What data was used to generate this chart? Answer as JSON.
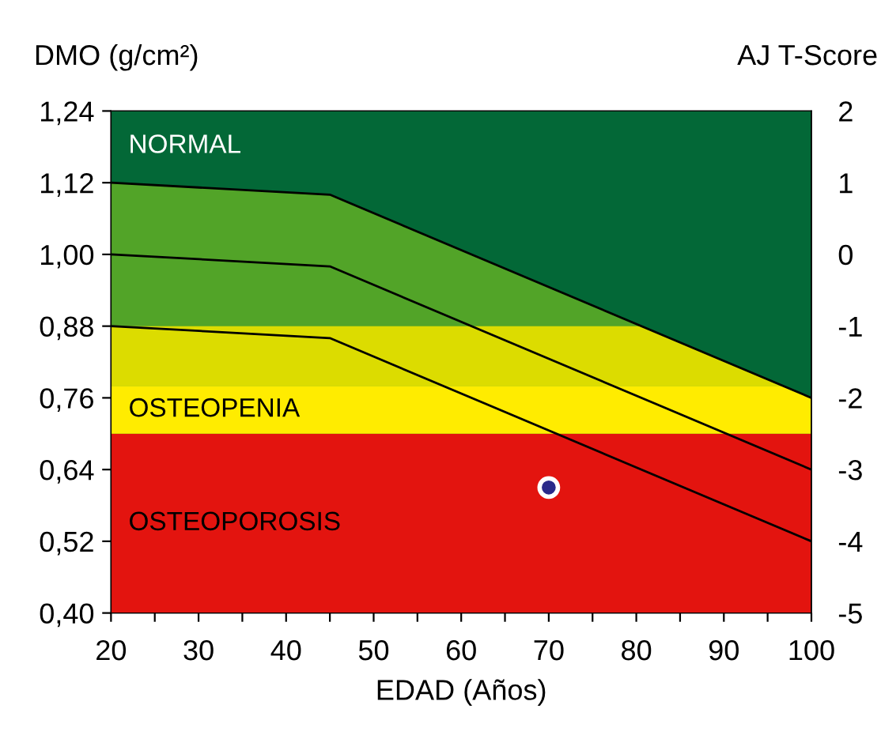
{
  "chart_data": {
    "type": "line",
    "xlabel": "EDAD (Años)",
    "ylabel": "DMO (g/cm²)",
    "y2label": "AJ T-Score",
    "xlim": [
      20,
      100
    ],
    "xticks": [
      20,
      {
        "value": 25,
        "label": null
      },
      30,
      {
        "value": 35,
        "label": null
      },
      40,
      {
        "value": 45,
        "label": null
      },
      50,
      {
        "value": 55,
        "label": null
      },
      60,
      {
        "value": 65,
        "label": null
      },
      70,
      {
        "value": 75,
        "label": null
      },
      80,
      {
        "value": 85,
        "label": null
      },
      90,
      {
        "value": 95,
        "label": null
      },
      100
    ],
    "ylim": [
      0.4,
      1.24
    ],
    "yticks": [
      {
        "value": 0.4,
        "label": "0,40"
      },
      {
        "value": 0.52,
        "label": "0,52"
      },
      {
        "value": 0.64,
        "label": "0,64"
      },
      {
        "value": 0.76,
        "label": "0,76"
      },
      {
        "value": 0.88,
        "label": "0,88"
      },
      {
        "value": 1.0,
        "label": "1,00"
      },
      {
        "value": 1.12,
        "label": "1,12"
      },
      {
        "value": 1.24,
        "label": "1,24"
      }
    ],
    "y2lim": [
      -5,
      2
    ],
    "y2ticks": [
      -5,
      -4,
      -3,
      -2,
      -1,
      0,
      1,
      2
    ],
    "grid": false,
    "legend": false,
    "annotations": [
      "NORMAL"
    ],
    "bands": [
      {
        "axis": "y",
        "from": 0.4,
        "to": 1.24,
        "color": "#036837"
      },
      {
        "axis": "y",
        "from": 0.4,
        "to": 0.7,
        "label": "OSTEOPOROSIS",
        "color": "#e3140f"
      },
      {
        "axis": "y",
        "from": 0.7,
        "to": 0.78,
        "label": "OSTEOPENIA",
        "color": "#ffec00"
      },
      {
        "axis": "y",
        "from": 0.78,
        "to": 0.88,
        "color": "#dcdc00"
      }
    ],
    "series": [
      {
        "type": "area",
        "color": "#52a428",
        "x": [
          20,
          45,
          100
        ],
        "values": [
          1.12,
          1.1,
          0.76
        ]
      },
      {
        "color": "#000000",
        "x": [
          20,
          45,
          100
        ],
        "values": [
          1.0,
          0.98,
          0.64
        ]
      },
      {
        "color": "#000000",
        "x": [
          20,
          45,
          100
        ],
        "values": [
          0.88,
          0.86,
          0.52
        ]
      },
      {
        "type": "scatter",
        "color": "#2a2a8a",
        "x": [
          70
        ],
        "values": [
          0.61
        ],
        "marker": "circle"
      }
    ]
  }
}
